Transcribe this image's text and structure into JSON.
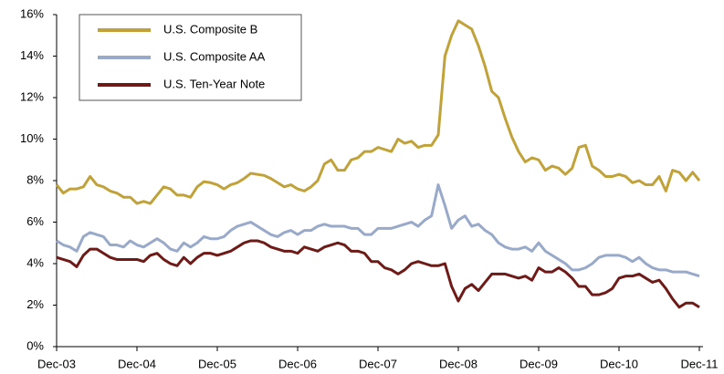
{
  "chart_data": {
    "type": "line",
    "categories": [
      "Dec-03",
      null,
      null,
      null,
      null,
      null,
      null,
      null,
      null,
      null,
      null,
      null,
      "Dec-04",
      null,
      null,
      null,
      null,
      null,
      null,
      null,
      null,
      null,
      null,
      null,
      "Dec-05",
      null,
      null,
      null,
      null,
      null,
      null,
      null,
      null,
      null,
      null,
      null,
      "Dec-06",
      null,
      null,
      null,
      null,
      null,
      null,
      null,
      null,
      null,
      null,
      null,
      "Dec-07",
      null,
      null,
      null,
      null,
      null,
      null,
      null,
      null,
      null,
      null,
      null,
      "Dec-08",
      null,
      null,
      null,
      null,
      null,
      null,
      null,
      null,
      null,
      null,
      null,
      "Dec-09",
      null,
      null,
      null,
      null,
      null,
      null,
      null,
      null,
      null,
      null,
      null,
      "Dec-10",
      null,
      null,
      null,
      null,
      null,
      null,
      null,
      null,
      null,
      null,
      null,
      "Dec-11"
    ],
    "series": [
      {
        "name": "U.S. Composite B",
        "color": "#c0a239",
        "values": [
          7.8,
          7.4,
          7.6,
          7.6,
          7.7,
          8.2,
          7.8,
          7.7,
          7.5,
          7.4,
          7.2,
          7.2,
          6.9,
          7.0,
          6.9,
          7.3,
          7.7,
          7.6,
          7.3,
          7.3,
          7.2,
          7.7,
          7.95,
          7.9,
          7.8,
          7.6,
          7.8,
          7.9,
          8.1,
          8.35,
          8.3,
          8.25,
          8.1,
          7.9,
          7.7,
          7.8,
          7.6,
          7.5,
          7.7,
          8.0,
          8.8,
          9.0,
          8.5,
          8.5,
          9.0,
          9.1,
          9.4,
          9.4,
          9.6,
          9.5,
          9.4,
          10.0,
          9.8,
          9.9,
          9.6,
          9.7,
          9.7,
          10.2,
          14.0,
          15.0,
          15.7,
          15.5,
          15.3,
          14.5,
          13.5,
          12.3,
          12.0,
          11.0,
          10.1,
          9.4,
          8.9,
          9.1,
          9.0,
          8.5,
          8.7,
          8.6,
          8.3,
          8.6,
          9.6,
          9.7,
          8.7,
          8.5,
          8.2,
          8.2,
          8.3,
          8.2,
          7.9,
          8.0,
          7.8,
          7.8,
          8.2,
          7.5,
          8.5,
          8.4,
          8.0,
          8.4,
          8.0
        ]
      },
      {
        "name": "U.S. Composite AA",
        "color": "#98a9c9",
        "values": [
          5.1,
          4.9,
          4.8,
          4.6,
          5.3,
          5.5,
          5.4,
          5.3,
          4.9,
          4.9,
          4.8,
          5.1,
          4.9,
          4.8,
          5.0,
          5.2,
          5.0,
          4.7,
          4.6,
          5.0,
          4.8,
          5.0,
          5.3,
          5.2,
          5.2,
          5.3,
          5.6,
          5.8,
          5.9,
          6.0,
          5.8,
          5.6,
          5.4,
          5.3,
          5.5,
          5.6,
          5.4,
          5.6,
          5.6,
          5.8,
          5.9,
          5.8,
          5.8,
          5.8,
          5.7,
          5.7,
          5.4,
          5.4,
          5.7,
          5.7,
          5.7,
          5.8,
          5.9,
          6.0,
          5.8,
          6.1,
          6.3,
          7.8,
          6.8,
          5.7,
          6.1,
          6.3,
          5.8,
          5.9,
          5.6,
          5.4,
          5.0,
          4.8,
          4.7,
          4.7,
          4.8,
          4.6,
          5.0,
          4.6,
          4.4,
          4.2,
          4.0,
          3.7,
          3.7,
          3.8,
          4.0,
          4.3,
          4.4,
          4.4,
          4.4,
          4.3,
          4.1,
          4.3,
          4.0,
          3.8,
          3.7,
          3.7,
          3.6,
          3.6,
          3.6,
          3.5,
          3.4
        ]
      },
      {
        "name": "U.S. Ten-Year Note",
        "color": "#6e1a17",
        "values": [
          4.3,
          4.2,
          4.1,
          3.85,
          4.4,
          4.7,
          4.7,
          4.5,
          4.3,
          4.2,
          4.2,
          4.2,
          4.2,
          4.1,
          4.4,
          4.5,
          4.2,
          4.0,
          3.9,
          4.3,
          4.0,
          4.3,
          4.5,
          4.5,
          4.4,
          4.5,
          4.6,
          4.8,
          5.0,
          5.1,
          5.1,
          5.0,
          4.8,
          4.7,
          4.6,
          4.6,
          4.5,
          4.8,
          4.7,
          4.6,
          4.8,
          4.9,
          5.0,
          4.9,
          4.6,
          4.6,
          4.5,
          4.1,
          4.1,
          3.8,
          3.7,
          3.5,
          3.7,
          4.0,
          4.1,
          4.0,
          3.9,
          3.9,
          4.0,
          2.9,
          2.2,
          2.8,
          3.0,
          2.7,
          3.1,
          3.5,
          3.5,
          3.5,
          3.4,
          3.3,
          3.4,
          3.2,
          3.8,
          3.6,
          3.6,
          3.8,
          3.6,
          3.3,
          2.9,
          2.9,
          2.5,
          2.5,
          2.6,
          2.8,
          3.3,
          3.4,
          3.4,
          3.5,
          3.3,
          3.1,
          3.2,
          2.8,
          2.3,
          1.9,
          2.1,
          2.1,
          1.9
        ]
      }
    ],
    "ylim": [
      0,
      16
    ],
    "yticks": [
      {
        "value": 0,
        "label": "0%"
      },
      {
        "value": 2,
        "label": "2%"
      },
      {
        "value": 4,
        "label": "4%"
      },
      {
        "value": 6,
        "label": "6%"
      },
      {
        "value": 8,
        "label": "8%"
      },
      {
        "value": 10,
        "label": "10%"
      },
      {
        "value": 12,
        "label": "12%"
      },
      {
        "value": 14,
        "label": "14%"
      },
      {
        "value": 16,
        "label": "16%"
      }
    ],
    "grid": false,
    "legend": "top-left"
  }
}
